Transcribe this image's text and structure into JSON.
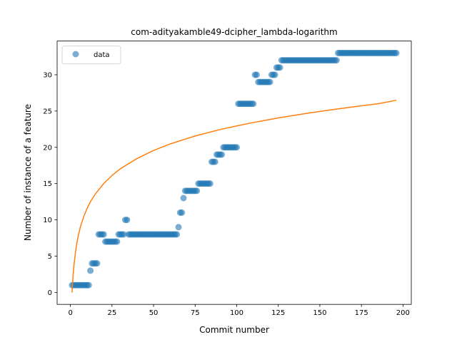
{
  "chart_data": {
    "type": "scatter",
    "title": "com-adityakamble49-dcipher_lambda-logarithm",
    "xlabel": "Commit number",
    "ylabel": "Number of instance of a feature",
    "xlim": [
      -8,
      205
    ],
    "ylim": [
      -1.65,
      34.65
    ],
    "xticks": [
      0,
      25,
      50,
      75,
      100,
      125,
      150,
      175,
      200
    ],
    "yticks": [
      0,
      5,
      10,
      15,
      20,
      25,
      30
    ],
    "legend": {
      "placement": "top-left",
      "entries": [
        "data"
      ]
    },
    "grid": false,
    "colors": {
      "data": "#1f77b4",
      "fit": "#ff7f0e"
    },
    "series": [
      {
        "name": "data",
        "kind": "scatter",
        "points": [
          [
            1,
            1
          ],
          [
            2,
            1
          ],
          [
            3,
            1
          ],
          [
            4,
            1
          ],
          [
            5,
            1
          ],
          [
            6,
            1
          ],
          [
            7,
            1
          ],
          [
            8,
            1
          ],
          [
            9,
            1
          ],
          [
            10,
            1
          ],
          [
            11,
            1
          ],
          [
            12,
            3
          ],
          [
            13,
            4
          ],
          [
            14,
            4
          ],
          [
            15,
            4
          ],
          [
            16,
            4
          ],
          [
            17,
            8
          ],
          [
            18,
            8
          ],
          [
            19,
            8
          ],
          [
            20,
            8
          ],
          [
            21,
            7
          ],
          [
            22,
            7
          ],
          [
            23,
            7
          ],
          [
            24,
            7
          ],
          [
            25,
            7
          ],
          [
            26,
            7
          ],
          [
            27,
            7
          ],
          [
            28,
            7
          ],
          [
            29,
            8
          ],
          [
            30,
            8
          ],
          [
            31,
            8
          ],
          [
            32,
            8
          ],
          [
            33,
            10
          ],
          [
            34,
            10
          ],
          [
            35,
            8
          ],
          [
            36,
            8
          ],
          [
            37,
            8
          ],
          [
            38,
            8
          ],
          [
            39,
            8
          ],
          [
            40,
            8
          ],
          [
            41,
            8
          ],
          [
            42,
            8
          ],
          [
            43,
            8
          ],
          [
            44,
            8
          ],
          [
            45,
            8
          ],
          [
            46,
            8
          ],
          [
            47,
            8
          ],
          [
            48,
            8
          ],
          [
            49,
            8
          ],
          [
            50,
            8
          ],
          [
            51,
            8
          ],
          [
            52,
            8
          ],
          [
            53,
            8
          ],
          [
            54,
            8
          ],
          [
            55,
            8
          ],
          [
            56,
            8
          ],
          [
            57,
            8
          ],
          [
            58,
            8
          ],
          [
            59,
            8
          ],
          [
            60,
            8
          ],
          [
            61,
            8
          ],
          [
            62,
            8
          ],
          [
            63,
            8
          ],
          [
            64,
            8
          ],
          [
            65,
            9
          ],
          [
            66,
            11
          ],
          [
            67,
            11
          ],
          [
            68,
            13
          ],
          [
            69,
            14
          ],
          [
            70,
            14
          ],
          [
            71,
            14
          ],
          [
            72,
            14
          ],
          [
            73,
            14
          ],
          [
            74,
            14
          ],
          [
            75,
            14
          ],
          [
            76,
            14
          ],
          [
            77,
            15
          ],
          [
            78,
            15
          ],
          [
            79,
            15
          ],
          [
            80,
            15
          ],
          [
            81,
            15
          ],
          [
            82,
            15
          ],
          [
            83,
            15
          ],
          [
            84,
            15
          ],
          [
            85,
            18
          ],
          [
            86,
            18
          ],
          [
            87,
            18
          ],
          [
            88,
            19
          ],
          [
            89,
            19
          ],
          [
            90,
            19
          ],
          [
            91,
            19
          ],
          [
            92,
            20
          ],
          [
            93,
            20
          ],
          [
            94,
            20
          ],
          [
            95,
            20
          ],
          [
            96,
            20
          ],
          [
            97,
            20
          ],
          [
            98,
            20
          ],
          [
            99,
            20
          ],
          [
            100,
            20
          ],
          [
            101,
            26
          ],
          [
            102,
            26
          ],
          [
            103,
            26
          ],
          [
            104,
            26
          ],
          [
            105,
            26
          ],
          [
            106,
            26
          ],
          [
            107,
            26
          ],
          [
            108,
            26
          ],
          [
            109,
            26
          ],
          [
            110,
            26
          ],
          [
            111,
            30
          ],
          [
            112,
            30
          ],
          [
            113,
            29
          ],
          [
            114,
            29
          ],
          [
            115,
            29
          ],
          [
            116,
            29
          ],
          [
            117,
            29
          ],
          [
            118,
            29
          ],
          [
            119,
            29
          ],
          [
            120,
            29
          ],
          [
            121,
            30
          ],
          [
            122,
            30
          ],
          [
            123,
            30
          ],
          [
            124,
            31
          ],
          [
            125,
            31
          ],
          [
            126,
            31
          ],
          [
            127,
            32
          ],
          [
            128,
            32
          ],
          [
            129,
            32
          ],
          [
            130,
            32
          ],
          [
            131,
            32
          ],
          [
            132,
            32
          ],
          [
            133,
            32
          ],
          [
            134,
            32
          ],
          [
            135,
            32
          ],
          [
            136,
            32
          ],
          [
            137,
            32
          ],
          [
            138,
            32
          ],
          [
            139,
            32
          ],
          [
            140,
            32
          ],
          [
            141,
            32
          ],
          [
            142,
            32
          ],
          [
            143,
            32
          ],
          [
            144,
            32
          ],
          [
            145,
            32
          ],
          [
            146,
            32
          ],
          [
            147,
            32
          ],
          [
            148,
            32
          ],
          [
            149,
            32
          ],
          [
            150,
            32
          ],
          [
            151,
            32
          ],
          [
            152,
            32
          ],
          [
            153,
            32
          ],
          [
            154,
            32
          ],
          [
            155,
            32
          ],
          [
            156,
            32
          ],
          [
            157,
            32
          ],
          [
            158,
            32
          ],
          [
            159,
            32
          ],
          [
            160,
            32
          ],
          [
            161,
            33
          ],
          [
            162,
            33
          ],
          [
            163,
            33
          ],
          [
            164,
            33
          ],
          [
            165,
            33
          ],
          [
            166,
            33
          ],
          [
            167,
            33
          ],
          [
            168,
            33
          ],
          [
            169,
            33
          ],
          [
            170,
            33
          ],
          [
            171,
            33
          ],
          [
            172,
            33
          ],
          [
            173,
            33
          ],
          [
            174,
            33
          ],
          [
            175,
            33
          ],
          [
            176,
            33
          ],
          [
            177,
            33
          ],
          [
            178,
            33
          ],
          [
            179,
            33
          ],
          [
            180,
            33
          ],
          [
            181,
            33
          ],
          [
            182,
            33
          ],
          [
            183,
            33
          ],
          [
            184,
            33
          ],
          [
            185,
            33
          ],
          [
            186,
            33
          ],
          [
            187,
            33
          ],
          [
            188,
            33
          ],
          [
            189,
            33
          ],
          [
            190,
            33
          ],
          [
            191,
            33
          ],
          [
            192,
            33
          ],
          [
            193,
            33
          ],
          [
            194,
            33
          ],
          [
            195,
            33
          ],
          [
            196,
            33
          ]
        ]
      },
      {
        "kind": "line",
        "x": [
          1,
          1.5,
          2,
          3,
          4,
          5,
          6,
          8,
          10,
          12,
          15,
          20,
          25,
          30,
          40,
          50,
          60,
          75,
          90,
          100,
          110,
          125,
          140,
          150,
          160,
          175,
          185,
          196
        ],
        "y": [
          0.0,
          2.0,
          3.49,
          5.5,
          6.97,
          8.1,
          9.04,
          10.45,
          11.57,
          12.49,
          13.58,
          15.0,
          16.12,
          17.04,
          18.45,
          19.56,
          20.47,
          21.56,
          22.45,
          22.95,
          23.42,
          24.05,
          24.61,
          24.95,
          25.27,
          25.72,
          26.0,
          26.49
        ]
      }
    ]
  }
}
